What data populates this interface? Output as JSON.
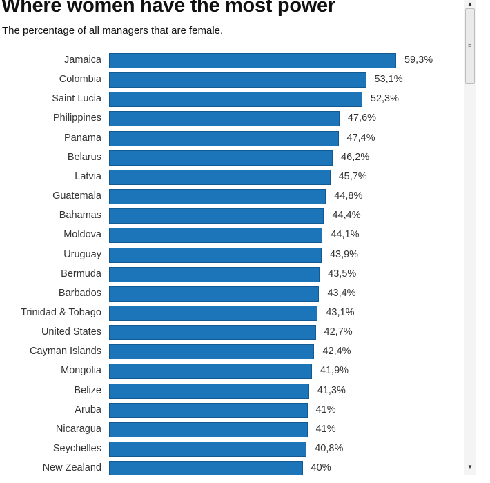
{
  "chart_data": {
    "type": "bar",
    "orientation": "horizontal",
    "title": "Where women have the most power",
    "subtitle": "The percentage of all managers that are female.",
    "xlabel": "",
    "ylabel": "",
    "xlim": [
      0,
      60
    ],
    "grid": false,
    "bar_color": "#1c75b9",
    "categories": [
      "Jamaica",
      "Colombia",
      "Saint Lucia",
      "Philippines",
      "Panama",
      "Belarus",
      "Latvia",
      "Guatemala",
      "Bahamas",
      "Moldova",
      "Uruguay",
      "Bermuda",
      "Barbados",
      "Trinidad & Tobago",
      "United States",
      "Cayman Islands",
      "Mongolia",
      "Belize",
      "Aruba",
      "Nicaragua",
      "Seychelles",
      "New Zealand"
    ],
    "values": [
      59.3,
      53.1,
      52.3,
      47.6,
      47.4,
      46.2,
      45.7,
      44.8,
      44.4,
      44.1,
      43.9,
      43.5,
      43.4,
      43.1,
      42.7,
      42.4,
      41.9,
      41.3,
      41,
      41,
      40.8,
      40
    ],
    "value_labels": [
      "59,3%",
      "53,1%",
      "52,3%",
      "47,6%",
      "47,4%",
      "46,2%",
      "45,7%",
      "44,8%",
      "44,4%",
      "44,1%",
      "43,9%",
      "43,5%",
      "43,4%",
      "43,1%",
      "42,7%",
      "42,4%",
      "41,9%",
      "41,3%",
      "41%",
      "41%",
      "40,8%",
      "40%"
    ]
  },
  "scrollbar": {
    "grip_icon": "grip-icon",
    "up_icon": "arrow-up-icon",
    "down_icon": "arrow-down-icon"
  }
}
